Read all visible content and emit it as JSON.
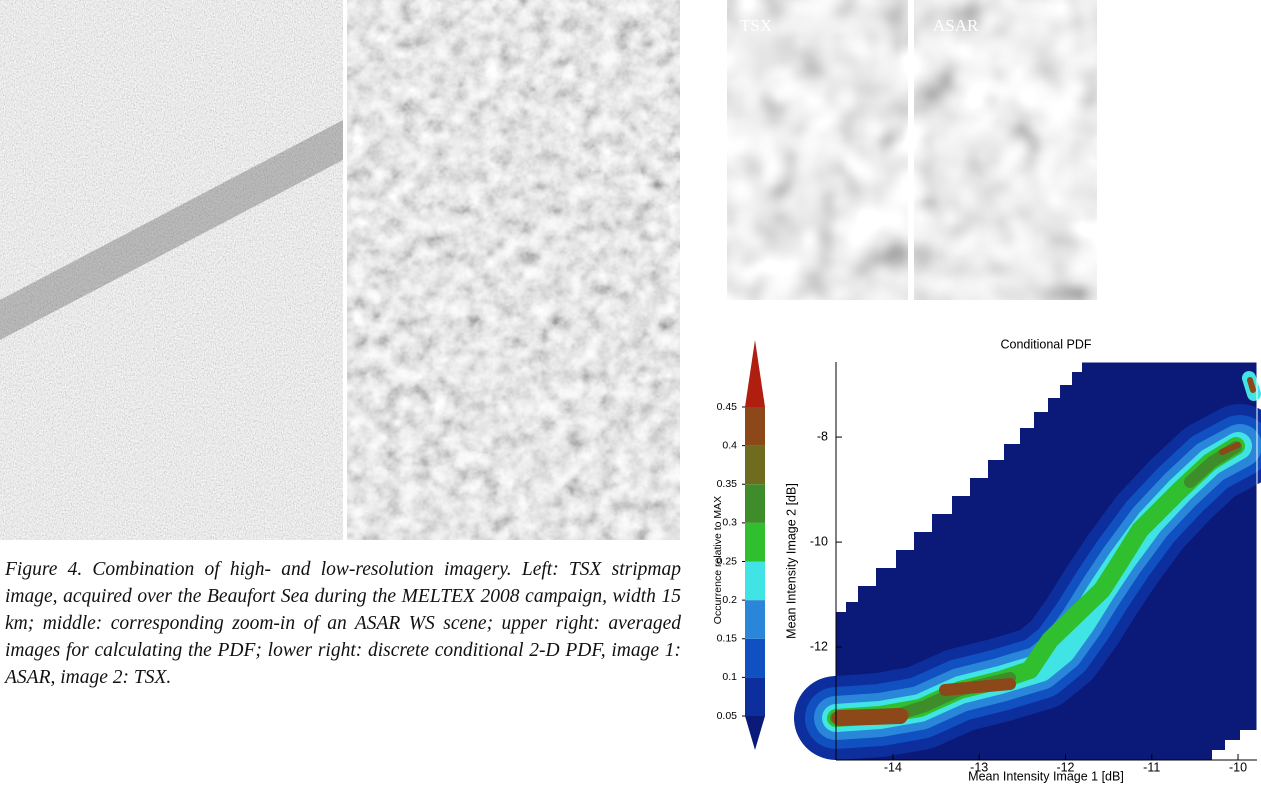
{
  "panels": {
    "tsx_label": "TSX",
    "asar_label": "ASAR"
  },
  "caption": "Figure 4. Combination of high- and low-resolution imagery. Left: TSX stripmap image, acquired over the Beaufort Sea during the MELTEX 2008 campaign, width 15 km; middle: corresponding zoom-in of an ASAR WS scene; upper right: averaged images for calculating the PDF; lower right: discrete conditional 2-D PDF, image 1: ASAR, image 2: TSX.",
  "chart_data": {
    "type": "contour",
    "title": "Conditional PDF",
    "x_label": "Mean Intensity Image 1 [dB]",
    "y_label": "Mean Intensity Image 2 [dB]",
    "xlim": [
      -14.66,
      -9.78
    ],
    "xticks": [
      -14,
      -13,
      -12,
      -11,
      -10
    ],
    "ylim": [
      -14.15,
      -6.57
    ],
    "yticks": [
      -12,
      -10,
      -8
    ],
    "colorbar": {
      "label": "Occurrence relative to MAX",
      "levels": [
        0.05,
        0.1,
        0.15,
        0.2,
        0.25,
        0.3,
        0.35,
        0.4,
        0.45
      ],
      "colors": [
        "#0b1a78",
        "#0d2f9e",
        "#1150c0",
        "#2a86d8",
        "#40e4e4",
        "#2fbf2f",
        "#3f8c2b",
        "#6f6b1f",
        "#8c4818",
        "#b01e10"
      ]
    }
  }
}
